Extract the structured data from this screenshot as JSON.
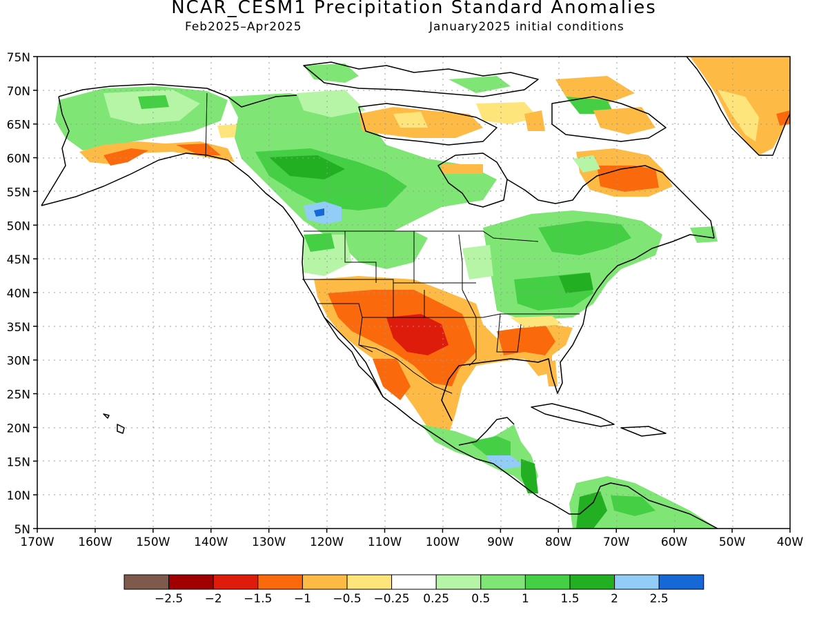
{
  "header": {
    "title": "NCAR_CESM1 Precipitation Standard Anomalies",
    "period": "Feb2025–Apr2025",
    "init": "January2025 initial conditions"
  },
  "axes": {
    "lat_labels": [
      "75N",
      "70N",
      "65N",
      "60N",
      "55N",
      "50N",
      "45N",
      "40N",
      "35N",
      "30N",
      "25N",
      "20N",
      "15N",
      "10N",
      "5N"
    ],
    "lon_labels": [
      "170W",
      "160W",
      "150W",
      "140W",
      "130W",
      "120W",
      "110W",
      "100W",
      "90W",
      "80W",
      "70W",
      "60W",
      "50W",
      "40W"
    ]
  },
  "colorbar": {
    "colors": [
      "#7d5a4c",
      "#a10000",
      "#de1c0c",
      "#fa6a0c",
      "#fdbb46",
      "#fde47b",
      "#ffffff",
      "#b5f5a5",
      "#7fe676",
      "#44cf44",
      "#22b022",
      "#92cdf7",
      "#1668d6"
    ],
    "labels": [
      "−2.5",
      "−2",
      "−1.5",
      "−1",
      "−0.5",
      "−0.25",
      "0.25",
      "0.5",
      "1",
      "1.5",
      "2",
      "2.5"
    ]
  }
}
